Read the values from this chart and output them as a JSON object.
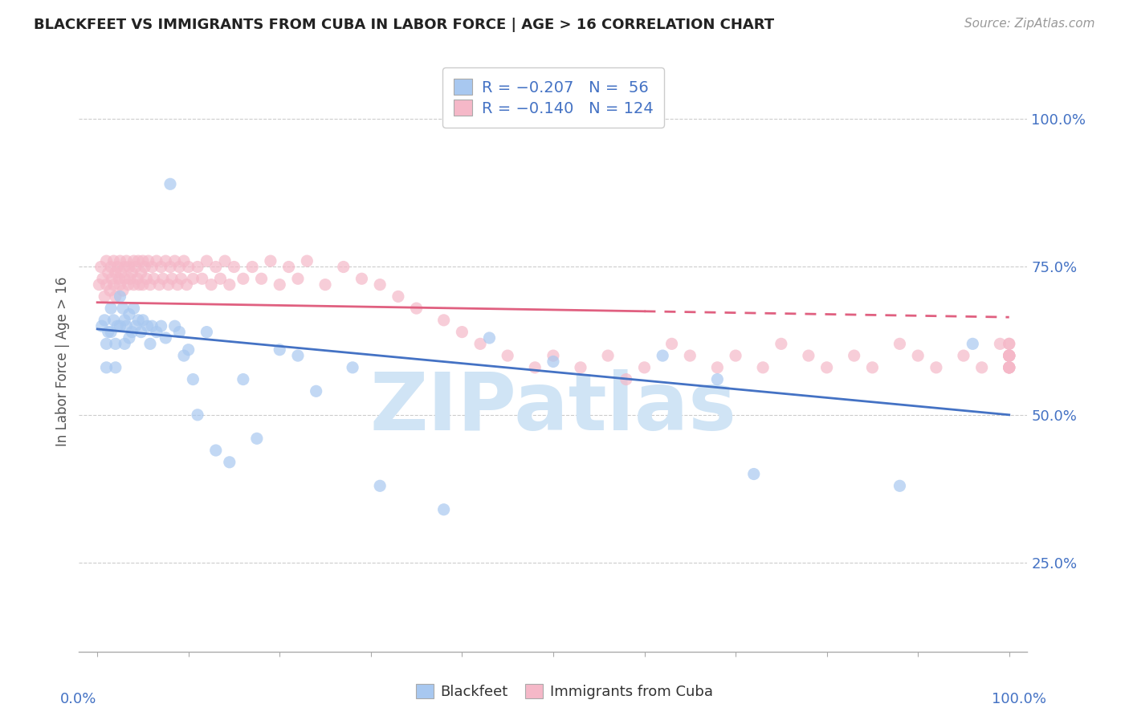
{
  "title": "BLACKFEET VS IMMIGRANTS FROM CUBA IN LABOR FORCE | AGE > 16 CORRELATION CHART",
  "source_text": "Source: ZipAtlas.com",
  "ylabel": "In Labor Force | Age > 16",
  "watermark": "ZIPatlas",
  "xlim": [
    -0.02,
    1.02
  ],
  "ylim": [
    0.1,
    1.08
  ],
  "yticks": [
    0.25,
    0.5,
    0.75,
    1.0
  ],
  "yticklabels": [
    "25.0%",
    "50.0%",
    "75.0%",
    "100.0%"
  ],
  "legend_line1": "R = −0.207   N =  56",
  "legend_line2": "R = −0.140   N = 124",
  "color_blue": "#A8C8F0",
  "color_pink": "#F5B8C8",
  "color_blue_line": "#4472C4",
  "color_pink_line": "#E06080",
  "color_text_blue": "#4472C4",
  "color_watermark": "#D0E4F5",
  "blue_line_y_start": 0.645,
  "blue_line_y_end": 0.5,
  "pink_line_solid_x_end": 0.6,
  "pink_line_y_start": 0.69,
  "pink_line_y_end": 0.665,
  "pink_line_dash_x_start": 0.6,
  "pink_line_dash_y_at_060": 0.673,
  "pink_line_dash_y_end": 0.66,
  "blackfeet_x": [
    0.005,
    0.008,
    0.01,
    0.01,
    0.012,
    0.015,
    0.015,
    0.018,
    0.02,
    0.02,
    0.022,
    0.025,
    0.025,
    0.028,
    0.03,
    0.03,
    0.032,
    0.035,
    0.035,
    0.038,
    0.04,
    0.042,
    0.045,
    0.048,
    0.05,
    0.055,
    0.058,
    0.06,
    0.065,
    0.07,
    0.075,
    0.08,
    0.085,
    0.09,
    0.095,
    0.1,
    0.105,
    0.11,
    0.12,
    0.13,
    0.145,
    0.16,
    0.175,
    0.2,
    0.22,
    0.24,
    0.28,
    0.31,
    0.38,
    0.43,
    0.5,
    0.62,
    0.68,
    0.72,
    0.88,
    0.96
  ],
  "blackfeet_y": [
    0.65,
    0.66,
    0.62,
    0.58,
    0.64,
    0.68,
    0.64,
    0.66,
    0.62,
    0.58,
    0.65,
    0.7,
    0.65,
    0.68,
    0.66,
    0.62,
    0.65,
    0.67,
    0.63,
    0.64,
    0.68,
    0.65,
    0.66,
    0.64,
    0.66,
    0.65,
    0.62,
    0.65,
    0.64,
    0.65,
    0.63,
    0.89,
    0.65,
    0.64,
    0.6,
    0.61,
    0.56,
    0.5,
    0.64,
    0.44,
    0.42,
    0.56,
    0.46,
    0.61,
    0.6,
    0.54,
    0.58,
    0.38,
    0.34,
    0.63,
    0.59,
    0.6,
    0.56,
    0.4,
    0.38,
    0.62
  ],
  "cuba_x": [
    0.002,
    0.004,
    0.006,
    0.008,
    0.01,
    0.01,
    0.012,
    0.014,
    0.015,
    0.016,
    0.018,
    0.018,
    0.02,
    0.02,
    0.022,
    0.024,
    0.025,
    0.025,
    0.026,
    0.028,
    0.03,
    0.03,
    0.032,
    0.034,
    0.035,
    0.036,
    0.038,
    0.04,
    0.04,
    0.042,
    0.044,
    0.045,
    0.046,
    0.048,
    0.05,
    0.05,
    0.052,
    0.054,
    0.056,
    0.058,
    0.06,
    0.062,
    0.065,
    0.068,
    0.07,
    0.072,
    0.075,
    0.078,
    0.08,
    0.082,
    0.085,
    0.088,
    0.09,
    0.092,
    0.095,
    0.098,
    0.1,
    0.105,
    0.11,
    0.115,
    0.12,
    0.125,
    0.13,
    0.135,
    0.14,
    0.145,
    0.15,
    0.16,
    0.17,
    0.18,
    0.19,
    0.2,
    0.21,
    0.22,
    0.23,
    0.25,
    0.27,
    0.29,
    0.31,
    0.33,
    0.35,
    0.38,
    0.4,
    0.42,
    0.45,
    0.48,
    0.5,
    0.53,
    0.56,
    0.58,
    0.6,
    0.63,
    0.65,
    0.68,
    0.7,
    0.73,
    0.75,
    0.78,
    0.8,
    0.83,
    0.85,
    0.88,
    0.9,
    0.92,
    0.95,
    0.97,
    0.99,
    1.0,
    1.0,
    1.0,
    1.0,
    1.0,
    1.0,
    1.0,
    1.0,
    1.0,
    1.0,
    1.0,
    1.0,
    1.0
  ],
  "cuba_y": [
    0.72,
    0.75,
    0.73,
    0.7,
    0.76,
    0.72,
    0.74,
    0.71,
    0.75,
    0.73,
    0.76,
    0.72,
    0.74,
    0.7,
    0.75,
    0.73,
    0.76,
    0.72,
    0.74,
    0.71,
    0.75,
    0.73,
    0.76,
    0.72,
    0.75,
    0.73,
    0.74,
    0.76,
    0.72,
    0.75,
    0.73,
    0.76,
    0.72,
    0.74,
    0.76,
    0.72,
    0.75,
    0.73,
    0.76,
    0.72,
    0.75,
    0.73,
    0.76,
    0.72,
    0.75,
    0.73,
    0.76,
    0.72,
    0.75,
    0.73,
    0.76,
    0.72,
    0.75,
    0.73,
    0.76,
    0.72,
    0.75,
    0.73,
    0.75,
    0.73,
    0.76,
    0.72,
    0.75,
    0.73,
    0.76,
    0.72,
    0.75,
    0.73,
    0.75,
    0.73,
    0.76,
    0.72,
    0.75,
    0.73,
    0.76,
    0.72,
    0.75,
    0.73,
    0.72,
    0.7,
    0.68,
    0.66,
    0.64,
    0.62,
    0.6,
    0.58,
    0.6,
    0.58,
    0.6,
    0.56,
    0.58,
    0.62,
    0.6,
    0.58,
    0.6,
    0.58,
    0.62,
    0.6,
    0.58,
    0.6,
    0.58,
    0.62,
    0.6,
    0.58,
    0.6,
    0.58,
    0.62,
    0.6,
    0.58,
    0.6,
    0.58,
    0.62,
    0.6,
    0.58,
    0.6,
    0.58,
    0.62,
    0.6,
    0.58,
    0.6
  ]
}
